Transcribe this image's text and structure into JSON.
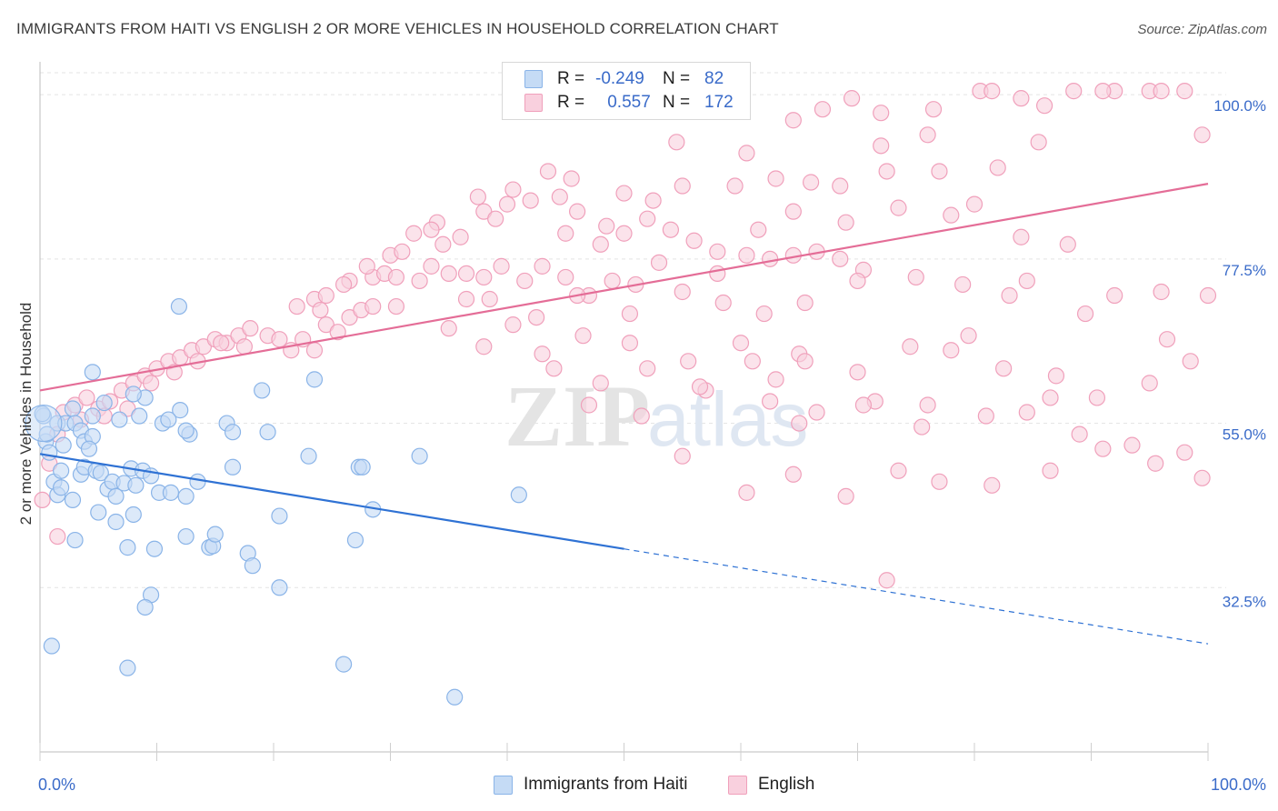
{
  "title": "IMMIGRANTS FROM HAITI VS ENGLISH 2 OR MORE VEHICLES IN HOUSEHOLD CORRELATION CHART",
  "source": "Source: ZipAtlas.com",
  "watermark": "ZIPatlas",
  "legend": {
    "row1": {
      "r_label": "R =",
      "r_value": "-0.249",
      "n_label": "N =",
      "n_value": "82"
    },
    "row2": {
      "r_label": "R =",
      "r_value": "0.557",
      "n_label": "N =",
      "n_value": "172"
    }
  },
  "bottom_legend": {
    "series1": "Immigrants from Haiti",
    "series2": "English"
  },
  "colors": {
    "blue": "#8ab4e8",
    "blue_fill": "#c5dbf5",
    "blue_line": "#2f72d4",
    "pink": "#f0a0bb",
    "pink_fill": "#f9d0de",
    "pink_line": "#e46d97",
    "axis_text": "#3a6bc9"
  },
  "chart_data": {
    "type": "scatter",
    "title": "IMMIGRANTS FROM HAITI VS ENGLISH 2 OR MORE VEHICLES IN HOUSEHOLD CORRELATION CHART",
    "xlabel": "",
    "ylabel": "2 or more Vehicles in Household",
    "xlim": [
      0,
      100
    ],
    "ylim": [
      10,
      104
    ],
    "x_tick_labels": [
      "0.0%",
      "100.0%"
    ],
    "y_ticks": [
      32.5,
      55.0,
      77.5,
      100.0
    ],
    "y_tick_labels": [
      "32.5%",
      "55.0%",
      "77.5%",
      "100.0%"
    ],
    "grid": true,
    "legend_position": "top-center",
    "series": [
      {
        "name": "Immigrants from Haiti",
        "color": "#8ab4e8",
        "trend": {
          "x": [
            0,
            50
          ],
          "y": [
            50.8,
            37.8
          ],
          "dashed_to": [
            100,
            24.8
          ]
        },
        "points": [
          [
            0.3,
            56.0
          ],
          [
            0.5,
            52.5
          ],
          [
            0.8,
            51.0
          ],
          [
            1.2,
            47.0
          ],
          [
            1.5,
            55.0
          ],
          [
            1.8,
            48.5
          ],
          [
            2.2,
            55.0
          ],
          [
            2.8,
            57.0
          ],
          [
            3.0,
            55.0
          ],
          [
            3.5,
            54.0
          ],
          [
            3.8,
            52.5
          ],
          [
            4.5,
            53.2
          ],
          [
            0.6,
            53.5
          ],
          [
            1.5,
            45.2
          ],
          [
            1.8,
            46.2
          ],
          [
            2.8,
            44.5
          ],
          [
            3.5,
            48.0
          ],
          [
            3.8,
            49.0
          ],
          [
            4.2,
            51.5
          ],
          [
            4.8,
            48.5
          ],
          [
            5.2,
            48.2
          ],
          [
            5.8,
            46.0
          ],
          [
            6.2,
            47.0
          ],
          [
            6.5,
            45.0
          ],
          [
            7.2,
            46.8
          ],
          [
            7.8,
            48.8
          ],
          [
            8.2,
            46.5
          ],
          [
            8.8,
            48.5
          ],
          [
            9.5,
            47.8
          ],
          [
            10.2,
            45.5
          ],
          [
            11.2,
            45.5
          ],
          [
            12.5,
            45.0
          ],
          [
            4.5,
            56.0
          ],
          [
            5.5,
            57.8
          ],
          [
            6.8,
            55.5
          ],
          [
            8.5,
            56.0
          ],
          [
            9.0,
            58.5
          ],
          [
            10.5,
            55.0
          ],
          [
            12.0,
            56.8
          ],
          [
            12.8,
            53.5
          ],
          [
            8.0,
            59.0
          ],
          [
            4.5,
            62.0
          ],
          [
            12.5,
            54.0
          ],
          [
            16.0,
            55.0
          ],
          [
            16.5,
            53.8
          ],
          [
            19.5,
            53.8
          ],
          [
            11.0,
            55.5
          ],
          [
            5.0,
            42.8
          ],
          [
            6.5,
            41.5
          ],
          [
            8.0,
            42.5
          ],
          [
            9.8,
            37.8
          ],
          [
            12.5,
            39.5
          ],
          [
            14.5,
            38.0
          ],
          [
            14.8,
            38.2
          ],
          [
            15.0,
            39.8
          ],
          [
            17.8,
            37.2
          ],
          [
            18.2,
            35.5
          ],
          [
            20.5,
            42.3
          ],
          [
            27.0,
            39.0
          ],
          [
            28.5,
            43.2
          ],
          [
            41.0,
            45.2
          ],
          [
            7.5,
            38.0
          ],
          [
            3.0,
            39.0
          ],
          [
            9.5,
            31.5
          ],
          [
            9.0,
            29.8
          ],
          [
            20.5,
            32.5
          ],
          [
            1.0,
            24.5
          ],
          [
            7.5,
            21.5
          ],
          [
            26.0,
            22.0
          ],
          [
            35.5,
            17.5
          ],
          [
            11.9,
            71.0
          ],
          [
            23.5,
            61.0
          ],
          [
            19.0,
            59.5
          ],
          [
            23.0,
            50.5
          ],
          [
            27.3,
            49.0
          ],
          [
            27.6,
            49.0
          ],
          [
            13.5,
            47.0
          ],
          [
            16.5,
            49.0
          ],
          [
            32.5,
            50.5
          ],
          [
            0.2,
            56.3
          ],
          [
            2.0,
            52.0
          ]
        ]
      },
      {
        "name": "English",
        "color": "#f0a0bb",
        "trend": {
          "x": [
            0,
            100
          ],
          "y": [
            59.5,
            87.8
          ]
        },
        "points": [
          [
            0.2,
            44.5
          ],
          [
            1.5,
            39.5
          ],
          [
            0.8,
            49.5
          ],
          [
            1.5,
            53.5
          ],
          [
            2.0,
            56.5
          ],
          [
            3.0,
            57.5
          ],
          [
            4.0,
            58.5
          ],
          [
            5.0,
            57.0
          ],
          [
            6.0,
            58.0
          ],
          [
            7.0,
            59.5
          ],
          [
            8.0,
            60.5
          ],
          [
            9.0,
            61.5
          ],
          [
            10.0,
            62.5
          ],
          [
            11.0,
            63.5
          ],
          [
            12.0,
            64.0
          ],
          [
            13.0,
            65.0
          ],
          [
            14.0,
            65.5
          ],
          [
            15.0,
            66.5
          ],
          [
            16.0,
            66.0
          ],
          [
            17.0,
            67.0
          ],
          [
            18.0,
            68.0
          ],
          [
            3.5,
            55.5
          ],
          [
            5.5,
            56.0
          ],
          [
            7.5,
            57.0
          ],
          [
            9.5,
            60.5
          ],
          [
            11.5,
            62.0
          ],
          [
            13.5,
            63.5
          ],
          [
            15.5,
            66.0
          ],
          [
            17.5,
            65.5
          ],
          [
            19.5,
            67.0
          ],
          [
            20.5,
            66.5
          ],
          [
            21.5,
            65.0
          ],
          [
            22.5,
            66.5
          ],
          [
            23.5,
            65.0
          ],
          [
            24.5,
            68.5
          ],
          [
            25.5,
            67.5
          ],
          [
            26.5,
            69.5
          ],
          [
            27.5,
            70.5
          ],
          [
            28.5,
            71.0
          ],
          [
            22.0,
            71.0
          ],
          [
            23.5,
            72.0
          ],
          [
            24.5,
            72.5
          ],
          [
            26.5,
            74.5
          ],
          [
            28.5,
            75.0
          ],
          [
            29.5,
            75.5
          ],
          [
            30.5,
            75.0
          ],
          [
            32.5,
            74.5
          ],
          [
            33.5,
            76.5
          ],
          [
            35.0,
            75.5
          ],
          [
            36.5,
            72.0
          ],
          [
            38.0,
            75.0
          ],
          [
            39.5,
            76.5
          ],
          [
            41.5,
            74.5
          ],
          [
            43.0,
            76.5
          ],
          [
            45.0,
            75.0
          ],
          [
            47.0,
            72.5
          ],
          [
            49.0,
            74.5
          ],
          [
            51.0,
            74.0
          ],
          [
            53.0,
            77.0
          ],
          [
            30.0,
            78.0
          ],
          [
            32.0,
            81.0
          ],
          [
            34.0,
            82.5
          ],
          [
            36.0,
            80.5
          ],
          [
            38.0,
            84.0
          ],
          [
            40.0,
            85.0
          ],
          [
            42.0,
            85.5
          ],
          [
            44.5,
            86.0
          ],
          [
            46.0,
            84.0
          ],
          [
            48.0,
            79.5
          ],
          [
            50.0,
            81.0
          ],
          [
            52.0,
            83.0
          ],
          [
            54.0,
            81.5
          ],
          [
            56.0,
            80.0
          ],
          [
            58.0,
            78.5
          ],
          [
            60.5,
            78.0
          ],
          [
            62.5,
            77.5
          ],
          [
            64.5,
            78.0
          ],
          [
            66.5,
            78.5
          ],
          [
            68.5,
            77.5
          ],
          [
            70.5,
            76.0
          ],
          [
            37.5,
            86.0
          ],
          [
            39.0,
            83.0
          ],
          [
            45.0,
            81.0
          ],
          [
            48.5,
            82.0
          ],
          [
            52.5,
            85.5
          ],
          [
            55.0,
            87.5
          ],
          [
            59.5,
            87.5
          ],
          [
            63.0,
            88.5
          ],
          [
            66.0,
            88.0
          ],
          [
            68.5,
            87.5
          ],
          [
            72.5,
            89.5
          ],
          [
            77.0,
            89.5
          ],
          [
            80.0,
            85.0
          ],
          [
            84.0,
            80.5
          ],
          [
            88.0,
            79.5
          ],
          [
            40.5,
            87.0
          ],
          [
            43.5,
            89.5
          ],
          [
            45.5,
            88.5
          ],
          [
            50.0,
            86.5
          ],
          [
            54.5,
            93.5
          ],
          [
            60.5,
            92.0
          ],
          [
            64.5,
            96.5
          ],
          [
            67.0,
            98.0
          ],
          [
            69.5,
            99.5
          ],
          [
            72.0,
            97.5
          ],
          [
            76.5,
            98.0
          ],
          [
            80.5,
            100.5
          ],
          [
            81.5,
            100.5
          ],
          [
            84.0,
            99.5
          ],
          [
            88.5,
            100.5
          ],
          [
            92.0,
            100.5
          ],
          [
            95.0,
            100.5
          ],
          [
            96.0,
            100.5
          ],
          [
            98.0,
            100.5
          ],
          [
            91.0,
            100.5
          ],
          [
            86.0,
            98.5
          ],
          [
            99.5,
            94.5
          ],
          [
            38.5,
            72.0
          ],
          [
            42.5,
            69.5
          ],
          [
            46.0,
            72.5
          ],
          [
            50.5,
            70.0
          ],
          [
            55.0,
            73.0
          ],
          [
            58.5,
            71.5
          ],
          [
            62.0,
            70.0
          ],
          [
            65.5,
            71.5
          ],
          [
            70.0,
            74.5
          ],
          [
            75.0,
            75.0
          ],
          [
            79.0,
            74.0
          ],
          [
            84.5,
            74.5
          ],
          [
            92.0,
            72.5
          ],
          [
            96.0,
            73.0
          ],
          [
            100.0,
            72.5
          ],
          [
            43.0,
            64.5
          ],
          [
            46.5,
            67.0
          ],
          [
            50.5,
            66.0
          ],
          [
            55.5,
            63.5
          ],
          [
            60.0,
            66.0
          ],
          [
            65.0,
            64.5
          ],
          [
            70.0,
            62.0
          ],
          [
            74.5,
            65.5
          ],
          [
            78.0,
            65.0
          ],
          [
            82.5,
            62.5
          ],
          [
            87.0,
            61.5
          ],
          [
            90.5,
            58.5
          ],
          [
            95.0,
            60.5
          ],
          [
            98.5,
            63.5
          ],
          [
            47.0,
            57.5
          ],
          [
            51.5,
            56.0
          ],
          [
            57.0,
            59.5
          ],
          [
            62.5,
            58.0
          ],
          [
            66.5,
            56.5
          ],
          [
            71.5,
            58.0
          ],
          [
            76.0,
            57.5
          ],
          [
            81.0,
            56.0
          ],
          [
            84.5,
            56.5
          ],
          [
            89.0,
            53.5
          ],
          [
            93.5,
            52.0
          ],
          [
            98.0,
            51.0
          ],
          [
            55.0,
            50.5
          ],
          [
            60.5,
            45.5
          ],
          [
            64.5,
            48.0
          ],
          [
            69.0,
            45.0
          ],
          [
            73.5,
            48.5
          ],
          [
            77.0,
            47.0
          ],
          [
            81.5,
            46.5
          ],
          [
            86.5,
            48.5
          ],
          [
            91.0,
            51.5
          ],
          [
            95.5,
            49.5
          ],
          [
            99.5,
            47.5
          ],
          [
            72.5,
            33.5
          ],
          [
            65.0,
            55.0
          ],
          [
            70.5,
            57.5
          ],
          [
            75.5,
            54.5
          ],
          [
            86.5,
            58.5
          ],
          [
            79.5,
            67.0
          ],
          [
            83.0,
            72.5
          ],
          [
            89.5,
            70.0
          ],
          [
            96.5,
            66.5
          ],
          [
            58.0,
            75.5
          ],
          [
            61.5,
            81.5
          ],
          [
            64.5,
            84.0
          ],
          [
            69.0,
            82.5
          ],
          [
            73.5,
            84.5
          ],
          [
            78.0,
            83.5
          ],
          [
            82.0,
            90.0
          ],
          [
            85.5,
            93.5
          ],
          [
            76.0,
            94.5
          ],
          [
            72.0,
            93.0
          ],
          [
            35.0,
            68.0
          ],
          [
            38.0,
            65.5
          ],
          [
            40.5,
            68.5
          ],
          [
            44.0,
            62.5
          ],
          [
            48.0,
            60.5
          ],
          [
            52.0,
            62.5
          ],
          [
            56.5,
            60.0
          ],
          [
            61.0,
            63.5
          ],
          [
            65.5,
            63.5
          ],
          [
            63.0,
            61.0
          ],
          [
            26.0,
            74.0
          ],
          [
            31.0,
            78.5
          ],
          [
            34.5,
            79.5
          ],
          [
            36.5,
            75.5
          ],
          [
            33.5,
            81.5
          ],
          [
            28.0,
            76.5
          ],
          [
            30.5,
            71.0
          ],
          [
            24.0,
            70.5
          ]
        ]
      }
    ]
  }
}
